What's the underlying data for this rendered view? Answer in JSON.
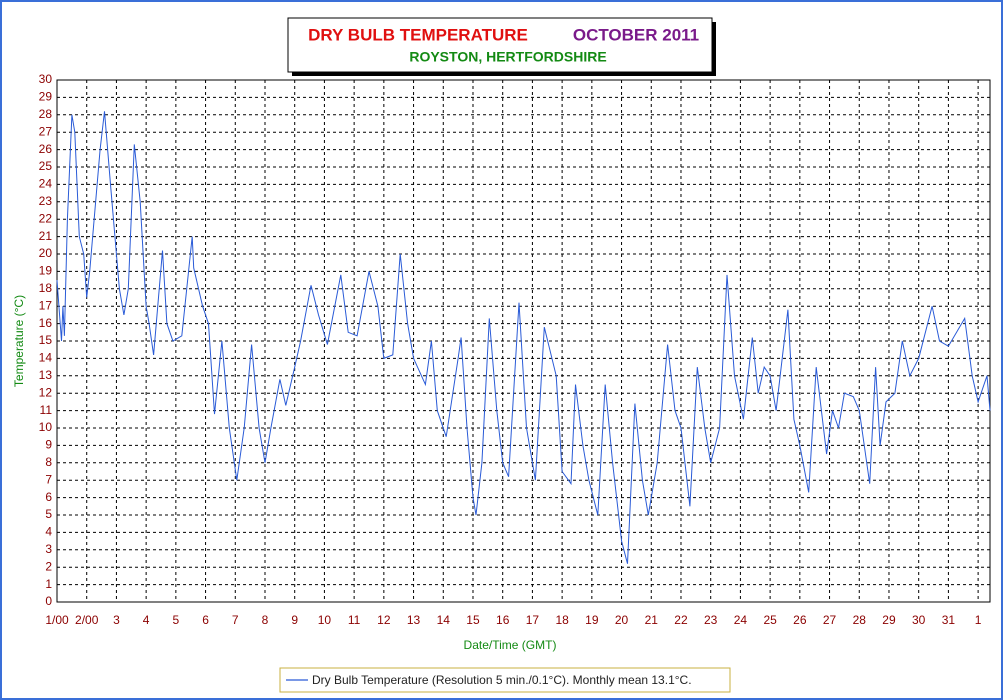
{
  "chart_data": {
    "type": "line",
    "title": "DRY BULB TEMPERATURE",
    "title_period": "OCTOBER 2011",
    "subtitle": "ROYSTON, HERTFORDSHIRE",
    "y_label": "Temperature (°C)",
    "x_label": "Date/Time (GMT)",
    "grid": true,
    "xlim": [
      1,
      32.4
    ],
    "ylim": [
      0,
      30
    ],
    "yticks": [
      0,
      1,
      2,
      3,
      4,
      5,
      6,
      7,
      8,
      9,
      10,
      11,
      12,
      13,
      14,
      15,
      16,
      17,
      18,
      19,
      20,
      21,
      22,
      23,
      24,
      25,
      26,
      27,
      28,
      29,
      30
    ],
    "xticks": [
      {
        "value": 1,
        "label": "1/00"
      },
      {
        "value": 2,
        "label": "2/00"
      },
      3,
      4,
      5,
      6,
      7,
      8,
      9,
      10,
      11,
      12,
      13,
      14,
      15,
      16,
      17,
      18,
      19,
      20,
      21,
      22,
      23,
      24,
      25,
      26,
      27,
      28,
      29,
      30,
      31,
      {
        "value": 32,
        "label": "1"
      }
    ],
    "series": [
      {
        "name": "Dry Bulb Temperature (Resolution 5 min./0.1°C). Monthly mean 13.1°C.",
        "color": "#2a5bd7",
        "x": [
          1.0,
          1.15,
          1.2,
          1.25,
          1.35,
          1.5,
          1.6,
          1.75,
          1.9,
          2.0,
          2.1,
          2.45,
          2.6,
          2.8,
          3.0,
          3.1,
          3.25,
          3.4,
          3.6,
          3.8,
          4.0,
          4.1,
          4.25,
          4.55,
          4.7,
          4.9,
          5.2,
          5.55,
          5.6,
          5.9,
          6.1,
          6.3,
          6.55,
          6.8,
          7.05,
          7.3,
          7.55,
          7.8,
          8.0,
          8.2,
          8.5,
          8.7,
          9.0,
          9.2,
          9.55,
          9.8,
          10.1,
          10.55,
          10.8,
          11.1,
          11.5,
          11.8,
          12.0,
          12.3,
          12.55,
          12.8,
          13.0,
          13.4,
          13.6,
          13.8,
          14.1,
          14.5,
          14.6,
          14.8,
          15.0,
          15.1,
          15.3,
          15.55,
          15.8,
          16.0,
          16.2,
          16.55,
          16.8,
          17.1,
          17.4,
          17.8,
          18.0,
          18.3,
          18.45,
          18.7,
          18.9,
          19.2,
          19.45,
          19.7,
          20.0,
          20.2,
          20.45,
          20.7,
          20.9,
          21.2,
          21.55,
          21.8,
          22.0,
          22.3,
          22.55,
          22.8,
          23.0,
          23.3,
          23.55,
          23.8,
          24.1,
          24.4,
          24.6,
          24.8,
          25.0,
          25.2,
          25.6,
          25.8,
          26.0,
          26.3,
          26.55,
          26.9,
          27.1,
          27.3,
          27.5,
          27.8,
          28.0,
          28.35,
          28.55,
          28.7,
          28.9,
          29.2,
          29.45,
          29.7,
          30.0,
          30.45,
          30.7,
          31.0,
          31.55,
          31.8,
          32.0,
          32.3,
          32.4
        ],
        "values": [
          18.5,
          15,
          17,
          15.3,
          22,
          28,
          27,
          21,
          20,
          17.5,
          19,
          26,
          28.2,
          24,
          20,
          18,
          16.5,
          18,
          26.3,
          23,
          17,
          16,
          14.2,
          20.2,
          16,
          15,
          15.3,
          21,
          19.2,
          17,
          16,
          10.8,
          15,
          10,
          7,
          10,
          14.8,
          10,
          8,
          10,
          12.8,
          11.3,
          13.5,
          15,
          18.2,
          16.5,
          14.8,
          18.8,
          15.5,
          15.3,
          19,
          17,
          14,
          14.2,
          20,
          16,
          14,
          12.5,
          15,
          11,
          9.5,
          14,
          15.2,
          10,
          6,
          5,
          8,
          16.3,
          11,
          8,
          7.2,
          17.2,
          10,
          7,
          15.8,
          13,
          7.5,
          6.8,
          12.5,
          9,
          7,
          5,
          12.5,
          8,
          3.5,
          2.2,
          11.4,
          7,
          5,
          8,
          14.8,
          11,
          10,
          5.5,
          13.5,
          10,
          8,
          10,
          18.8,
          13,
          10.5,
          15.2,
          12,
          13.5,
          13,
          11,
          16.8,
          10.5,
          9,
          6.3,
          13.5,
          8.5,
          11,
          10,
          12,
          11.8,
          11,
          6.8,
          13.5,
          9,
          11.5,
          12,
          15,
          13,
          14,
          17,
          15,
          14.7,
          16.3,
          13,
          11.5,
          13,
          11
        ]
      }
    ]
  }
}
